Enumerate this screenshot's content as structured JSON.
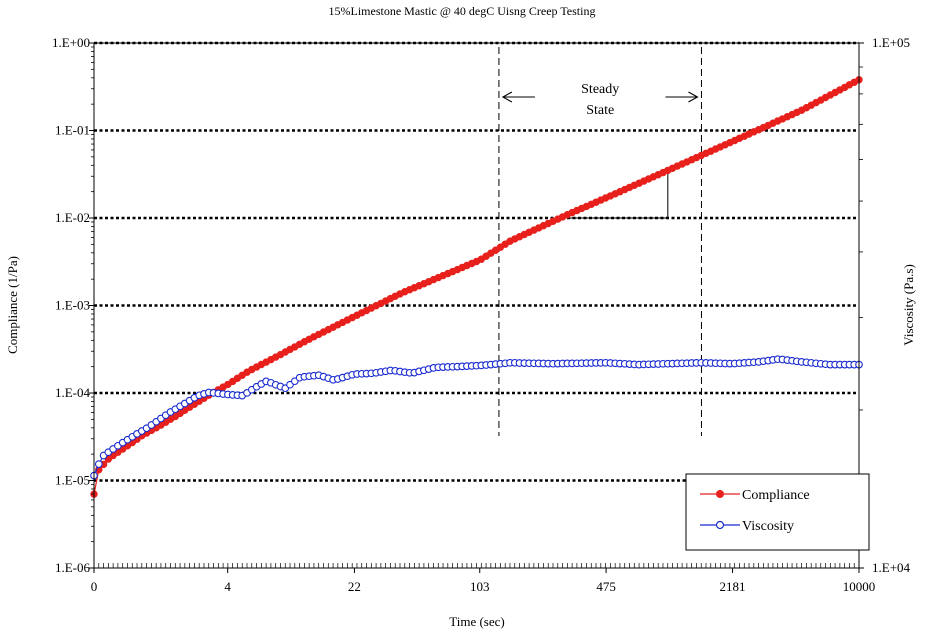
{
  "chart_data": {
    "type": "line",
    "title": "15%Limestone Mastic @ 40 degC Uisng Creep Testing",
    "xlabel": "Time (sec)",
    "ylabel_left": "Compliance (1/Pa)",
    "ylabel_right": "Viscosity (Pa.s)",
    "x_scale": "log(1+t)",
    "x_tick_labels": [
      "0",
      "4",
      "22",
      "103",
      "475",
      "2181",
      "10000"
    ],
    "x_tick_values": [
      0,
      4,
      22,
      103,
      475,
      2181,
      10000
    ],
    "x_range": [
      0,
      10000
    ],
    "y_left_scale": "log",
    "y_left_tick_labels": [
      "1.E-06",
      "1.E-05",
      "1.E-04",
      "1.E-03",
      "1.E-02",
      "1.E-01",
      "1.E+00"
    ],
    "y_left_range": [
      1e-06,
      1
    ],
    "y_right_scale": "log",
    "y_right_tick_labels": [
      "1.E+04",
      "1.E+05"
    ],
    "y_right_range": [
      10000,
      100000
    ],
    "gridlines": "horizontal dotted at each left-axis decade",
    "legend": {
      "position": "bottom-right",
      "entries": [
        "Compliance",
        "Viscosity"
      ]
    },
    "annotation": {
      "text_line1": "Steady",
      "text_line2": "State",
      "range_sec": [
        130,
        1500
      ]
    },
    "series": [
      {
        "name": "Compliance",
        "axis": "left",
        "color": "#e8201c",
        "marker": "filled-circle",
        "points": [
          [
            0,
            7e-06
          ],
          [
            0.05,
            1.3e-05
          ],
          [
            0.2,
            1.8e-05
          ],
          [
            0.5,
            2.5e-05
          ],
          [
            0.8,
            3.3e-05
          ],
          [
            1.2,
            4.2e-05
          ],
          [
            1.7,
            5.5e-05
          ],
          [
            2.2,
            7e-05
          ],
          [
            3,
            9.5e-05
          ],
          [
            4,
            0.000125
          ],
          [
            5.5,
            0.00018
          ],
          [
            8,
            0.00026
          ],
          [
            12,
            0.0004
          ],
          [
            22,
            0.00075
          ],
          [
            40,
            0.0014
          ],
          [
            103,
            0.0033
          ],
          [
            150,
            0.0055
          ],
          [
            300,
            0.011
          ],
          [
            475,
            0.017
          ],
          [
            1000,
            0.035
          ],
          [
            2181,
            0.075
          ],
          [
            5000,
            0.17
          ],
          [
            10000,
            0.38
          ]
        ]
      },
      {
        "name": "Viscosity",
        "axis": "right",
        "color": "#1a2bd0",
        "marker": "open-circle",
        "points": [
          [
            0,
            15000
          ],
          [
            0.1,
            16300
          ],
          [
            0.4,
            17300
          ],
          [
            0.9,
            18500
          ],
          [
            1.5,
            19800
          ],
          [
            2,
            20600
          ],
          [
            2.5,
            21300
          ],
          [
            3,
            21600
          ],
          [
            3.5,
            21500
          ],
          [
            4,
            21400
          ],
          [
            5,
            21300
          ],
          [
            6,
            22100
          ],
          [
            7,
            22700
          ],
          [
            8,
            22300
          ],
          [
            9,
            22000
          ],
          [
            11,
            23100
          ],
          [
            14,
            23300
          ],
          [
            17,
            22800
          ],
          [
            22,
            23400
          ],
          [
            28,
            23500
          ],
          [
            35,
            23800
          ],
          [
            45,
            23500
          ],
          [
            60,
            24100
          ],
          [
            80,
            24200
          ],
          [
            103,
            24300
          ],
          [
            150,
            24600
          ],
          [
            250,
            24500
          ],
          [
            475,
            24600
          ],
          [
            700,
            24400
          ],
          [
            1000,
            24500
          ],
          [
            1500,
            24600
          ],
          [
            2181,
            24500
          ],
          [
            3000,
            24700
          ],
          [
            3800,
            25000
          ],
          [
            5000,
            24700
          ],
          [
            7000,
            24400
          ],
          [
            10000,
            24400
          ]
        ]
      }
    ]
  }
}
